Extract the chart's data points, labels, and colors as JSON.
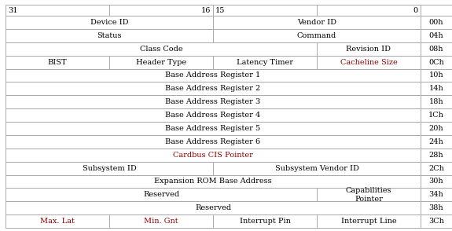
{
  "rows": [
    {
      "cells": [
        {
          "text": "Device ID",
          "colspan": 2,
          "color": "normal"
        },
        {
          "text": "Vendor ID",
          "colspan": 2,
          "color": "normal"
        }
      ],
      "addr": "00h"
    },
    {
      "cells": [
        {
          "text": "Status",
          "colspan": 2,
          "color": "normal"
        },
        {
          "text": "Command",
          "colspan": 2,
          "color": "normal"
        }
      ],
      "addr": "04h"
    },
    {
      "cells": [
        {
          "text": "Class Code",
          "colspan": 3,
          "color": "normal"
        },
        {
          "text": "Revision ID",
          "colspan": 1,
          "color": "normal"
        }
      ],
      "addr": "08h"
    },
    {
      "cells": [
        {
          "text": "BIST",
          "colspan": 1,
          "color": "normal"
        },
        {
          "text": "Header Type",
          "colspan": 1,
          "color": "normal"
        },
        {
          "text": "Latency Timer",
          "colspan": 1,
          "color": "normal"
        },
        {
          "text": "Cacheline Size",
          "colspan": 1,
          "color": "red"
        }
      ],
      "addr": "0Ch"
    },
    {
      "cells": [
        {
          "text": "Base Address Register 1",
          "colspan": 4,
          "color": "normal"
        }
      ],
      "addr": "10h"
    },
    {
      "cells": [
        {
          "text": "Base Address Register 2",
          "colspan": 4,
          "color": "normal"
        }
      ],
      "addr": "14h"
    },
    {
      "cells": [
        {
          "text": "Base Address Register 3",
          "colspan": 4,
          "color": "normal"
        }
      ],
      "addr": "18h"
    },
    {
      "cells": [
        {
          "text": "Base Address Register 4",
          "colspan": 4,
          "color": "normal"
        }
      ],
      "addr": "1Ch"
    },
    {
      "cells": [
        {
          "text": "Base Address Register 5",
          "colspan": 4,
          "color": "normal"
        }
      ],
      "addr": "20h"
    },
    {
      "cells": [
        {
          "text": "Base Address Register 6",
          "colspan": 4,
          "color": "normal"
        }
      ],
      "addr": "24h"
    },
    {
      "cells": [
        {
          "text": "Cardbus CIS Pointer",
          "colspan": 4,
          "color": "red"
        }
      ],
      "addr": "28h"
    },
    {
      "cells": [
        {
          "text": "Subsystem ID",
          "colspan": 2,
          "color": "normal"
        },
        {
          "text": "Subsystem Vendor ID",
          "colspan": 2,
          "color": "normal"
        }
      ],
      "addr": "2Ch"
    },
    {
      "cells": [
        {
          "text": "Expansion ROM Base Address",
          "colspan": 4,
          "color": "normal"
        }
      ],
      "addr": "30h"
    },
    {
      "cells": [
        {
          "text": "Reserved",
          "colspan": 3,
          "color": "normal"
        },
        {
          "text": "Capabilities\nPointer",
          "colspan": 1,
          "color": "normal"
        }
      ],
      "addr": "34h"
    },
    {
      "cells": [
        {
          "text": "Reserved",
          "colspan": 4,
          "color": "normal"
        }
      ],
      "addr": "38h"
    },
    {
      "cells": [
        {
          "text": "Max. Lat",
          "colspan": 1,
          "color": "red"
        },
        {
          "text": "Min. Gnt",
          "colspan": 1,
          "color": "red"
        },
        {
          "text": "Interrupt Pin",
          "colspan": 1,
          "color": "normal"
        },
        {
          "text": "Interrupt Line",
          "colspan": 1,
          "color": "normal"
        }
      ],
      "addr": "3Ch"
    }
  ],
  "normal_text_color": "#000000",
  "red_text_color": "#8B0000",
  "border_color": "#aaaaaa",
  "bg_color": "#ffffff",
  "font_size": 7.0,
  "header_font_size": 7.5
}
